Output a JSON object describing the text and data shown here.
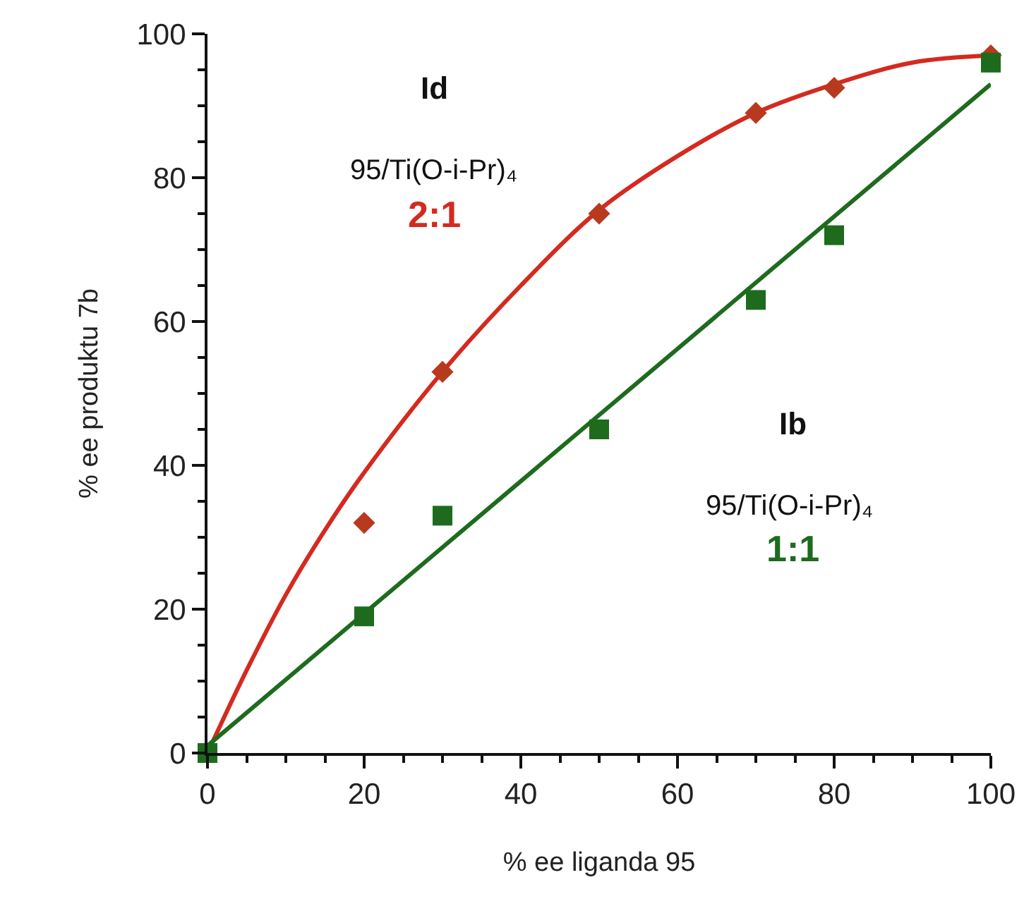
{
  "chart_data": {
    "type": "scatter",
    "xlabel": "% ee liganda 95",
    "ylabel": "% ee produktu 7b",
    "xlim": [
      0,
      100
    ],
    "ylim": [
      0,
      100
    ],
    "xticks": [
      0,
      {
        "value": 5,
        "label": null
      },
      {
        "value": 10,
        "label": null
      },
      {
        "value": 15,
        "label": null
      },
      20,
      {
        "value": 25,
        "label": null
      },
      {
        "value": 30,
        "label": null
      },
      {
        "value": 35,
        "label": null
      },
      40,
      {
        "value": 45,
        "label": null
      },
      {
        "value": 50,
        "label": null
      },
      {
        "value": 55,
        "label": null
      },
      60,
      {
        "value": 65,
        "label": null
      },
      {
        "value": 70,
        "label": null
      },
      {
        "value": 75,
        "label": null
      },
      80,
      {
        "value": 85,
        "label": null
      },
      {
        "value": 90,
        "label": null
      },
      {
        "value": 95,
        "label": null
      },
      100
    ],
    "yticks": [
      0,
      {
        "value": 5,
        "label": null
      },
      {
        "value": 10,
        "label": null
      },
      {
        "value": 15,
        "label": null
      },
      20,
      {
        "value": 25,
        "label": null
      },
      {
        "value": 30,
        "label": null
      },
      {
        "value": 35,
        "label": null
      },
      40,
      {
        "value": 45,
        "label": null
      },
      {
        "value": 50,
        "label": null
      },
      {
        "value": 55,
        "label": null
      },
      60,
      {
        "value": 65,
        "label": null
      },
      {
        "value": 70,
        "label": null
      },
      {
        "value": 75,
        "label": null
      },
      80,
      {
        "value": 85,
        "label": null
      },
      {
        "value": 90,
        "label": null
      },
      {
        "value": 95,
        "label": null
      },
      100
    ],
    "grid": false,
    "series": [
      {
        "type": "line",
        "color": "#d42a1f",
        "marker": "none",
        "x": [
          0,
          5,
          10,
          15,
          20,
          30,
          40,
          50,
          60,
          70,
          80,
          90,
          100
        ],
        "values": [
          0,
          11.5,
          22,
          31,
          39,
          53,
          65,
          75.5,
          83,
          89,
          93,
          96,
          97
        ]
      },
      {
        "type": "line",
        "color": "#1e6b1e",
        "marker": "none",
        "x": [
          0,
          100
        ],
        "values": [
          1,
          93
        ]
      },
      {
        "color": "#b83a1e",
        "marker": "diamond",
        "x": [
          20,
          30,
          50,
          70,
          80,
          100
        ],
        "values": [
          32,
          53,
          75,
          89,
          92.5,
          97
        ]
      },
      {
        "color": "#1e6b1e",
        "marker": "square",
        "x": [
          0,
          20,
          30,
          50,
          70,
          80,
          100
        ],
        "values": [
          0,
          19,
          33,
          45,
          63,
          72,
          96
        ]
      }
    ],
    "annotations": [
      "Id",
      "95/Ti(O-i-Pr)₄",
      "2:1",
      "Ib",
      "95/Ti(O-i-Pr)₄",
      "1:1"
    ]
  }
}
